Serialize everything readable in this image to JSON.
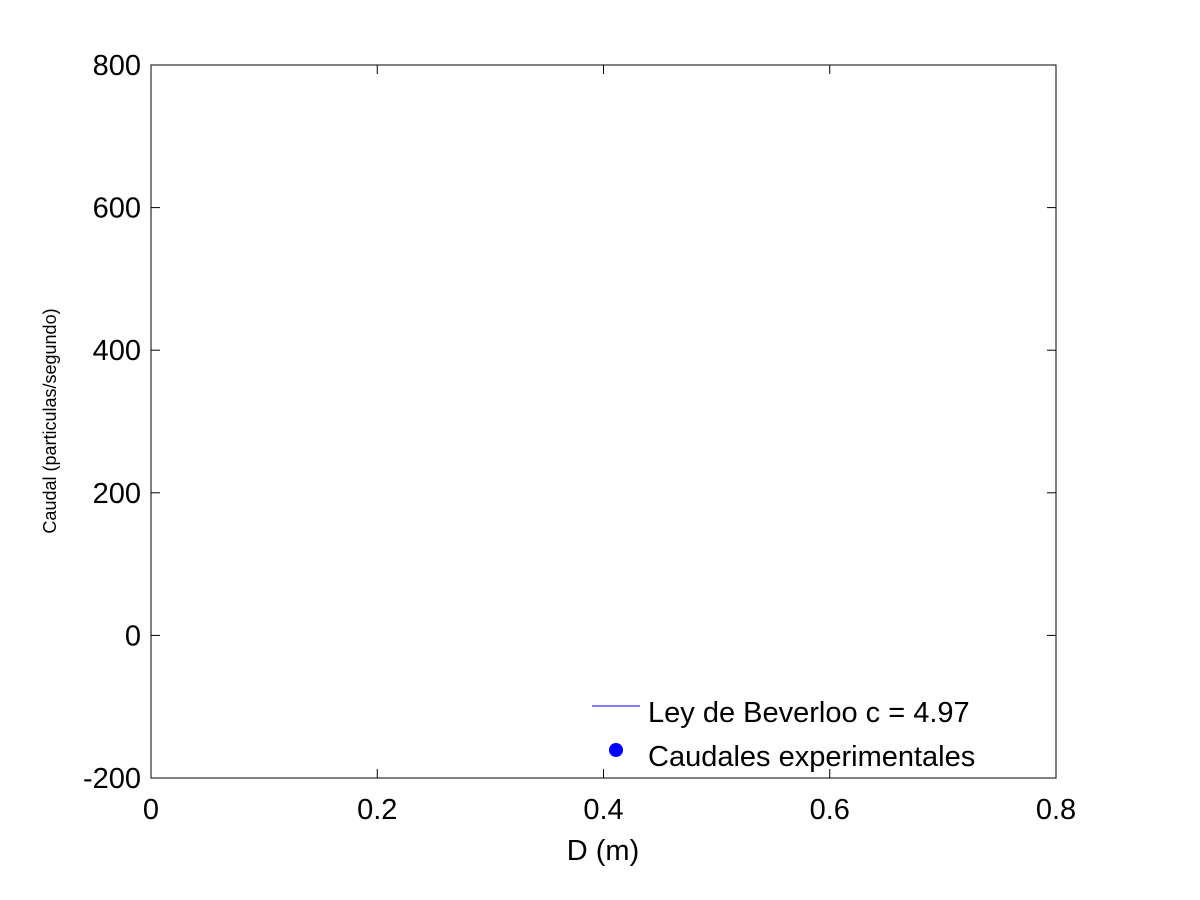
{
  "chart_data": {
    "type": "line",
    "xlabel": "D (m)",
    "ylabel": "Caudal (particulas/segundo)",
    "xlim": [
      0,
      0.8
    ],
    "ylim": [
      -200,
      800
    ],
    "x_ticks": [
      0,
      0.2,
      0.4,
      0.6,
      0.8
    ],
    "x_tick_labels": [
      "0",
      "0.2",
      "0.4",
      "0.6",
      "0.8"
    ],
    "y_ticks": [
      -200,
      0,
      200,
      400,
      600,
      800
    ],
    "y_tick_labels": [
      "-200",
      "0",
      "200",
      "400",
      "600",
      "800"
    ],
    "grid": false,
    "legend_position": "bottom-right",
    "series": [
      {
        "name": "Ley de Beverloo c = 4.97",
        "style": "line",
        "color": "#0000ff",
        "x": [],
        "y": []
      },
      {
        "name": "Caudales experimentales",
        "style": "marker",
        "color": "#0000ff",
        "x": [],
        "y": []
      }
    ]
  }
}
